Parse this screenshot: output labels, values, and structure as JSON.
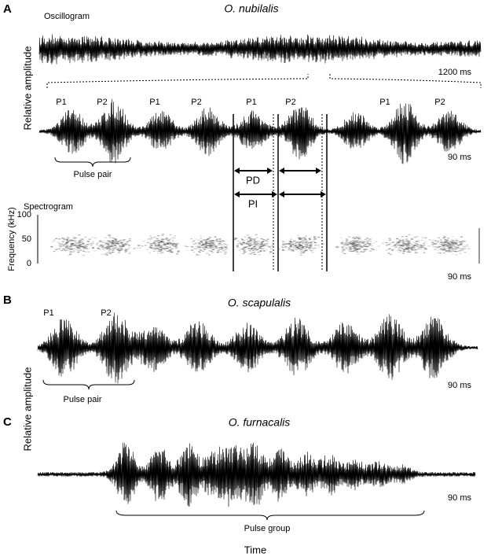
{
  "panels": [
    {
      "letter": "A",
      "species": "O. nubilalis",
      "oscillogram_label": "Oscillogram",
      "y_axis_label": "Relative amplitude",
      "scale_top": "1200 ms",
      "pulse_labels": [
        "P1",
        "P2",
        "P1",
        "P2",
        "P1",
        "P2",
        "P1",
        "P2"
      ],
      "pulse_pair": "Pulse pair",
      "scale_mid": "90 ms",
      "pd": "PD",
      "pi": "PI",
      "spectrogram_label": "Spectrogram",
      "freq_axis": "Frequency (kHz)",
      "freq_ticks": [
        "0",
        "50",
        "100"
      ],
      "scale_spec": "90 ms"
    },
    {
      "letter": "B",
      "species": "O. scapulalis",
      "pulse_labels": [
        "P1",
        "P2"
      ],
      "pulse_pair": "Pulse pair",
      "scale": "90 ms",
      "y_axis_label": "Relative amplitude"
    },
    {
      "letter": "C",
      "species": "O. furnacalis",
      "scale": "90 ms",
      "pulse_group": "Pulse group"
    }
  ],
  "x_axis_label": "Time"
}
